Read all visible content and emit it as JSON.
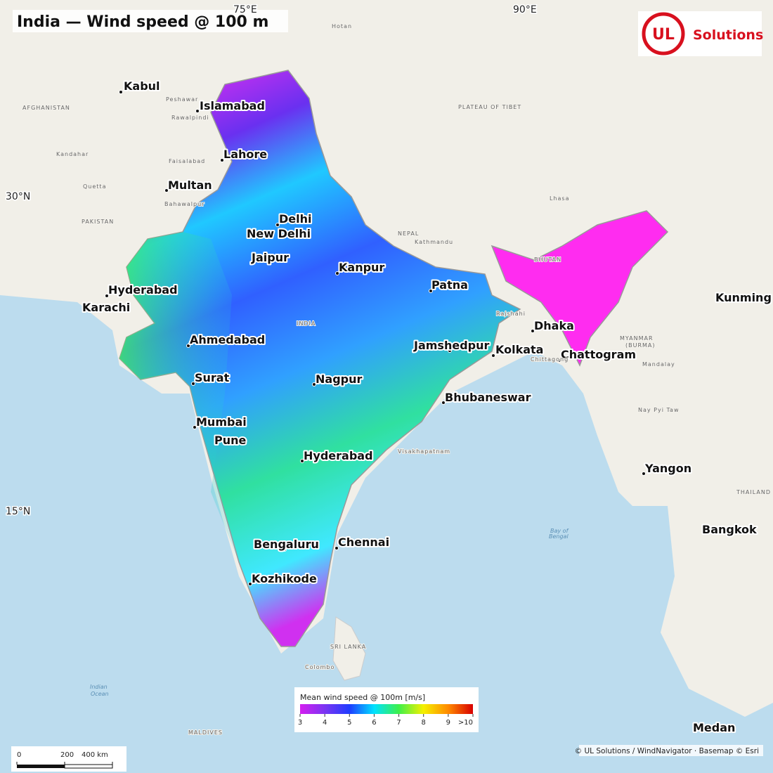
{
  "header": {
    "title": "India — Wind speed @ 100 m"
  },
  "logo": {
    "mark": "UL",
    "text": "Solutions"
  },
  "graticule": [
    "75°E",
    "90°E",
    "30°N",
    "15°N"
  ],
  "cities": [
    "Kabul",
    "Islamabad",
    "Lahore",
    "Multan",
    "Delhi",
    "New Delhi",
    "Jaipur",
    "Kanpur",
    "Patna",
    "Hyderabad",
    "Karachi",
    "Ahmedabad",
    "Jamshedpur",
    "Kolkata",
    "Dhaka",
    "Chattogram",
    "Kunming",
    "Surat",
    "Nagpur",
    "Bhubaneswar",
    "Mumbai",
    "Pune",
    "Hyderabad",
    "Yangon",
    "Bengaluru",
    "Chennai",
    "Kozhikode",
    "Bangkok",
    "Medan"
  ],
  "basemap_labels": [
    "AFGHANISTAN",
    "PAKISTAN",
    "PLATEAU OF TIBET",
    "NEPAL",
    "BHUTAN",
    "INDIA",
    "MYANMAR",
    "(BURMA)",
    "THAILAND",
    "SRI LANKA",
    "Kathmandu",
    "Lhasa",
    "Kandahar",
    "Quetta",
    "Hotan",
    "Peshawar",
    "Rawalpindi",
    "Faisalabad",
    "Bahawalpur",
    "Rajshahi",
    "Chittagong",
    "Mandalay",
    "Nay Pyi Taw",
    "Colombo",
    "Visakhapatnam",
    "MALDIVES"
  ],
  "sea_labels": [
    "Bay of",
    "Bengal",
    "Indian",
    "Ocean"
  ],
  "legend": {
    "title": "Mean wind speed @ 100m [m/s]",
    "ticks": [
      3,
      4,
      5,
      6,
      7,
      8,
      9,
      {
        "value": 10,
        "label": ">10"
      }
    ]
  },
  "scale_bar": {
    "ticks": [
      0,
      200,
      {
        "value": 400,
        "label": "400 km"
      }
    ]
  },
  "attribution": "© UL Solutions / WindNavigator · Basemap © Esri"
}
